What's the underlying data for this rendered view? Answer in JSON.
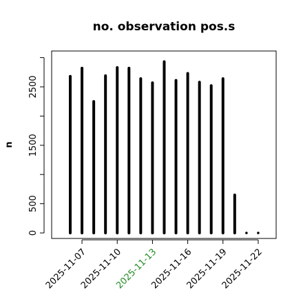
{
  "chart_data": {
    "type": "bar",
    "title": "no. observation pos.s",
    "xlabel": "",
    "ylabel": "n",
    "ylim": [
      0,
      3100
    ],
    "grid": false,
    "y_ticks": [
      0,
      500,
      1500,
      2500
    ],
    "x_ticks": [
      "2025-11-07",
      "2025-11-10",
      "2025-11-13",
      "2025-11-16",
      "2025-11-19",
      "2025-11-22"
    ],
    "x_tick_colors": [
      "#000000",
      "#000000",
      "#228B22",
      "#000000",
      "#000000",
      "#000000"
    ],
    "categories": [
      "2025-11-06",
      "2025-11-07",
      "2025-11-08",
      "2025-11-09",
      "2025-11-10",
      "2025-11-11",
      "2025-11-12",
      "2025-11-13",
      "2025-11-14",
      "2025-11-15",
      "2025-11-16",
      "2025-11-17",
      "2025-11-18",
      "2025-11-19",
      "2025-11-20",
      "2025-11-21",
      "2025-11-22"
    ],
    "values": [
      2680,
      2820,
      2250,
      2690,
      2830,
      2820,
      2640,
      2570,
      2930,
      2610,
      2730,
      2580,
      2520,
      2640,
      650,
      0,
      0
    ],
    "bar_color": "#000000"
  }
}
